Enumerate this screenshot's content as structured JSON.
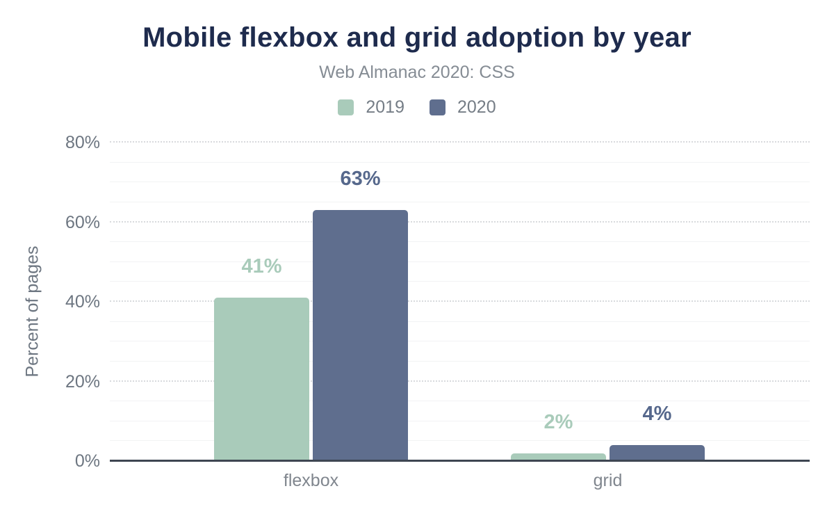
{
  "chart": {
    "title": "Mobile flexbox and grid adoption by year",
    "subtitle": "Web Almanac 2020: CSS",
    "y_axis_title": "Percent of pages"
  },
  "chart_data": {
    "type": "bar",
    "title": "Mobile flexbox and grid adoption by year",
    "subtitle": "Web Almanac 2020: CSS",
    "xlabel": "",
    "ylabel": "Percent of pages",
    "categories": [
      "flexbox",
      "grid"
    ],
    "series": [
      {
        "name": "2019",
        "values": [
          41,
          2
        ],
        "data_labels": [
          "41%",
          "2%"
        ],
        "color": "#a9cbba",
        "label_color": "#a9cbba"
      },
      {
        "name": "2020",
        "values": [
          63,
          4
        ],
        "data_labels": [
          "63%",
          "4%"
        ],
        "color": "#5f6e8e",
        "label_color": "#56688c"
      }
    ],
    "ylim": [
      0,
      80
    ],
    "y_ticks": [
      "0%",
      "20%",
      "40%",
      "60%",
      "80%"
    ],
    "y_major_step": 20,
    "y_minor_step": 5,
    "grid": true,
    "legend_position": "top"
  },
  "colors": {
    "background": "#ffffff",
    "title": "#1e2b4d",
    "subtitle": "#858c94",
    "legend_text": "#757d86",
    "tick_text": "#6d7681",
    "category_text": "#80868e",
    "axis_line": "#3e4652",
    "grid_major": "#d8dadd",
    "grid_minor": "#f2f3f4"
  }
}
